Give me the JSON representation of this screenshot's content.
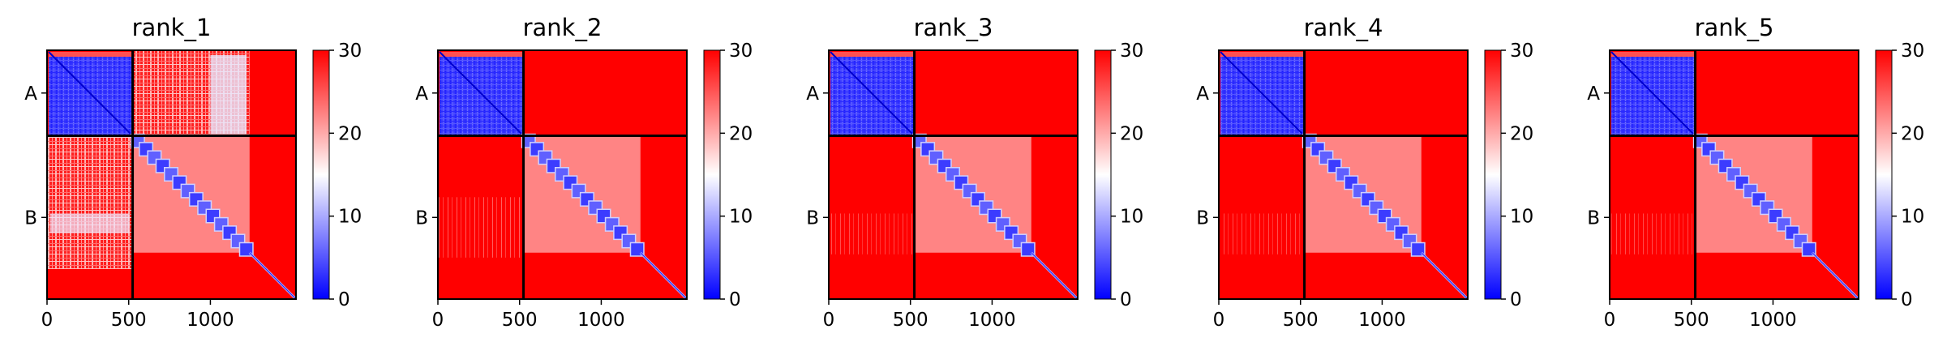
{
  "chart_data": [
    {
      "type": "heatmap",
      "title": "rank_1",
      "variant": "r1",
      "chain_labels": [
        "A",
        "B"
      ],
      "chain_boundary": 524,
      "n_residues": 1524,
      "x_ticks": [
        0,
        500,
        1000
      ],
      "xlim": [
        0,
        1524
      ],
      "colorbar": {
        "min": 0,
        "max": 30,
        "ticks": [
          0,
          10,
          20,
          30
        ],
        "colormap": "bwr"
      }
    },
    {
      "type": "heatmap",
      "title": "rank_2",
      "variant": "r2",
      "chain_labels": [
        "A",
        "B"
      ],
      "chain_boundary": 524,
      "n_residues": 1524,
      "x_ticks": [
        0,
        500,
        1000
      ],
      "xlim": [
        0,
        1524
      ],
      "colorbar": {
        "min": 0,
        "max": 30,
        "ticks": [
          0,
          10,
          20,
          30
        ],
        "colormap": "bwr"
      }
    },
    {
      "type": "heatmap",
      "title": "rank_3",
      "variant": "r3",
      "chain_labels": [
        "A",
        "B"
      ],
      "chain_boundary": 524,
      "n_residues": 1524,
      "x_ticks": [
        0,
        500,
        1000
      ],
      "xlim": [
        0,
        1524
      ],
      "colorbar": {
        "min": 0,
        "max": 30,
        "ticks": [
          0,
          10,
          20,
          30
        ],
        "colormap": "bwr"
      }
    },
    {
      "type": "heatmap",
      "title": "rank_4",
      "variant": "r3",
      "chain_labels": [
        "A",
        "B"
      ],
      "chain_boundary": 524,
      "n_residues": 1524,
      "x_ticks": [
        0,
        500,
        1000
      ],
      "xlim": [
        0,
        1524
      ],
      "colorbar": {
        "min": 0,
        "max": 30,
        "ticks": [
          0,
          10,
          20,
          30
        ],
        "colormap": "bwr"
      }
    },
    {
      "type": "heatmap",
      "title": "rank_5",
      "variant": "r3",
      "chain_labels": [
        "A",
        "B"
      ],
      "chain_boundary": 524,
      "n_residues": 1524,
      "x_ticks": [
        0,
        500,
        1000
      ],
      "xlim": [
        0,
        1524
      ],
      "colorbar": {
        "min": 0,
        "max": 30,
        "ticks": [
          0,
          10,
          20,
          30
        ],
        "colormap": "bwr"
      }
    }
  ],
  "colors": {
    "low": "#0000ff",
    "mid": "#ffffff",
    "high": "#ff0000",
    "divider": "#000000"
  }
}
